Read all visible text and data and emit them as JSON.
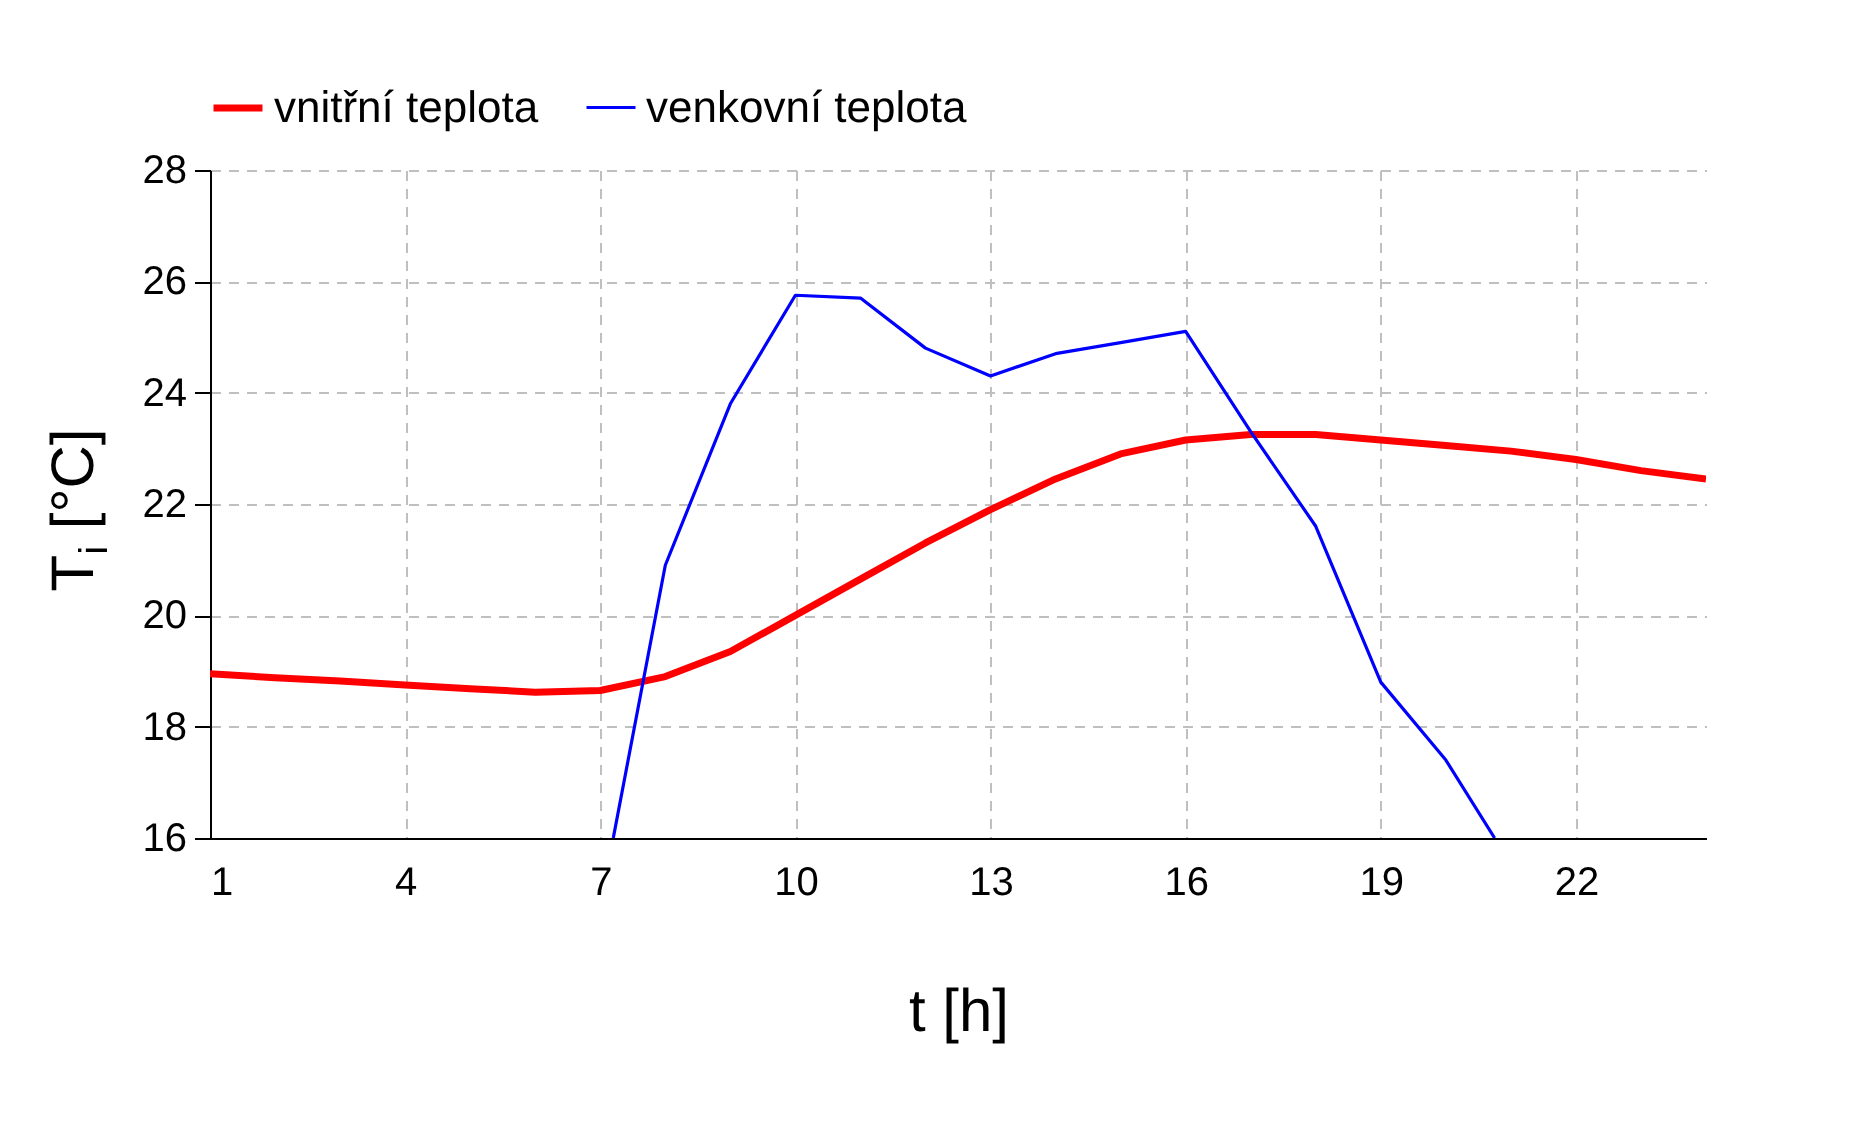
{
  "chart_data": {
    "type": "line",
    "xlabel": "t [h]",
    "ylabel": "T$_{i}$ [°C]",
    "xlim": [
      1,
      24
    ],
    "xticks": [
      1,
      4,
      7,
      10,
      13,
      16,
      19,
      22
    ],
    "ylim": [
      16,
      28
    ],
    "yticks": [
      16,
      18,
      20,
      22,
      24,
      26,
      28
    ],
    "grid": true,
    "legend": "top",
    "line_style": "solid",
    "marker": "none",
    "series": [
      {
        "name": "vnitřní teplota",
        "color": "#ff0000",
        "x": [
          1,
          2,
          3,
          4,
          5,
          6,
          7,
          8,
          9,
          10,
          11,
          12,
          13,
          14,
          15,
          16,
          17,
          18,
          19,
          20,
          21,
          22,
          23,
          24
        ],
        "values": [
          18.95,
          18.88,
          18.82,
          18.75,
          18.68,
          18.62,
          18.65,
          18.9,
          19.35,
          20.0,
          20.65,
          21.3,
          21.9,
          22.45,
          22.9,
          23.15,
          23.25,
          23.25,
          23.15,
          23.05,
          22.95,
          22.8,
          22.6,
          22.45
        ]
      },
      {
        "name": "venkovní teplota",
        "color": "#0000ff",
        "x": [
          7.2,
          8,
          9,
          10,
          11,
          12,
          13,
          14,
          15,
          16,
          17,
          18,
          19,
          20,
          20.75
        ],
        "values": [
          16,
          20.9,
          23.8,
          25.75,
          25.7,
          24.8,
          24.3,
          24.7,
          24.9,
          25.1,
          23.3,
          21.6,
          18.8,
          17.4,
          16
        ]
      }
    ]
  }
}
